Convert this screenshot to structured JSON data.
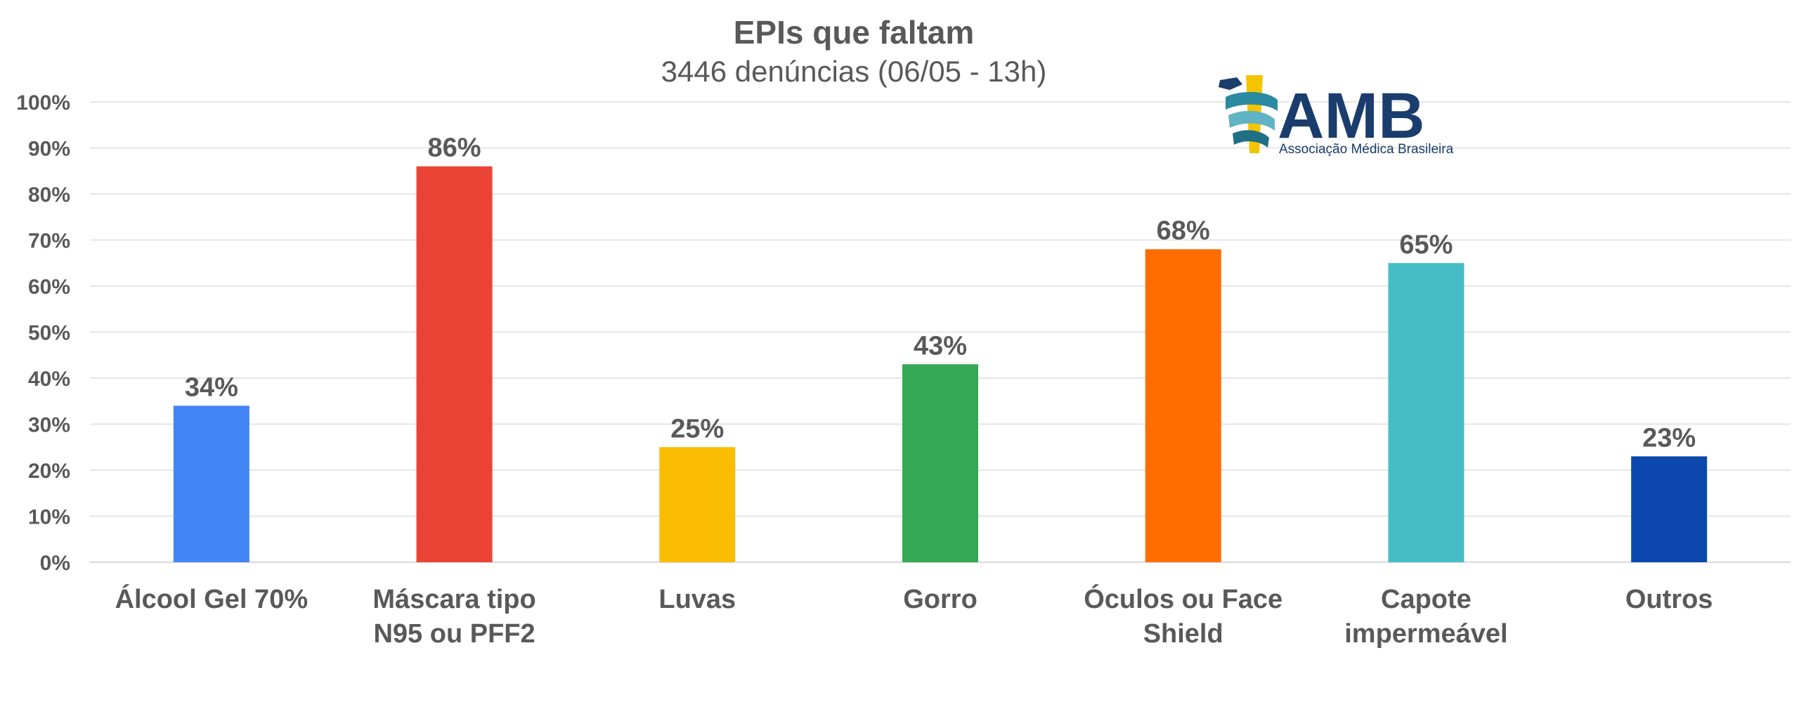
{
  "chart_data": {
    "type": "bar",
    "title": "EPIs que faltam",
    "subtitle": "3446 denúncias (06/05 - 13h)",
    "categories": [
      [
        "Álcool Gel 70%"
      ],
      [
        "Máscara tipo",
        "N95 ou PFF2"
      ],
      [
        "Luvas"
      ],
      [
        "Gorro"
      ],
      [
        "Óculos ou Face",
        "Shield"
      ],
      [
        "Capote",
        "impermeável"
      ],
      [
        "Outros"
      ]
    ],
    "values": [
      34,
      86,
      25,
      43,
      68,
      65,
      23
    ],
    "data_labels": [
      "34%",
      "86%",
      "25%",
      "43%",
      "68%",
      "65%",
      "23%"
    ],
    "colors": [
      "#4285f4",
      "#ea4335",
      "#fbbc04",
      "#34a853",
      "#ff6d01",
      "#46bdc6",
      "#0b47ad"
    ],
    "ylim": [
      0,
      100
    ],
    "yticks": [
      "0%",
      "10%",
      "20%",
      "30%",
      "40%",
      "50%",
      "60%",
      "70%",
      "80%",
      "90%",
      "100%"
    ],
    "grid": true,
    "legend": "none"
  },
  "logo": {
    "name": "AMB",
    "tagline": "Associação Médica Brasileira",
    "icon": "caduceus-icon",
    "color": "#1a3d6d",
    "accent": "#f5c400"
  }
}
